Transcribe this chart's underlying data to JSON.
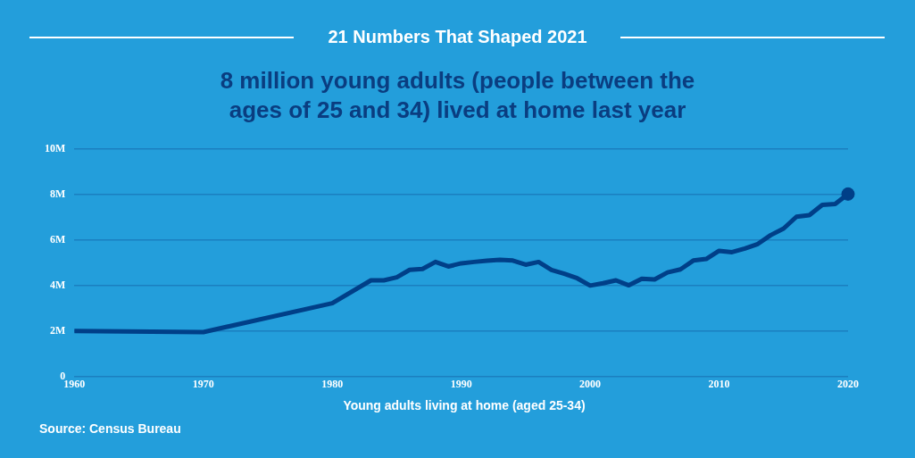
{
  "chart_data": {
    "type": "line",
    "title": "21 Numbers That Shaped 2021",
    "subtitle": "8 million young adults (people between the ages of 25 and 34) lived at home last year",
    "xlabel": "Young adults living at home (aged 25-34)",
    "annotations": [
      "Source: Census Bureau"
    ],
    "x": [
      1960,
      1970,
      1980,
      1983,
      1984,
      1985,
      1986,
      1987,
      1988,
      1989,
      1990,
      1991,
      1992,
      1993,
      1994,
      1995,
      1996,
      1997,
      1998,
      1999,
      2000,
      2001,
      2002,
      2003,
      2004,
      2005,
      2006,
      2007,
      2008,
      2009,
      2010,
      2011,
      2012,
      2013,
      2014,
      2015,
      2016,
      2017,
      2018,
      2019,
      2020
    ],
    "series": [
      {
        "type": "line",
        "color": "#003f88",
        "marker": "none",
        "values": [
          2.0,
          1.95,
          3.22,
          4.23,
          4.23,
          4.36,
          4.69,
          4.73,
          5.04,
          4.84,
          4.98,
          5.04,
          5.09,
          5.13,
          5.1,
          4.92,
          5.04,
          4.69,
          4.52,
          4.32,
          4.0,
          4.1,
          4.23,
          4.01,
          4.3,
          4.27,
          4.58,
          4.71,
          5.1,
          5.17,
          5.53,
          5.47,
          5.63,
          5.83,
          6.22,
          6.51,
          7.03,
          7.1,
          7.55,
          7.59,
          8.03
        ]
      },
      {
        "type": "scatter",
        "color": "#003f88",
        "marker": "circle",
        "x": [
          2020
        ],
        "values": [
          8.03
        ]
      }
    ],
    "xlim": [
      1960,
      2020
    ],
    "xticks": [
      1960,
      1970,
      1980,
      1990,
      2000,
      2010,
      2020
    ],
    "ylim": [
      0,
      10
    ],
    "yticks": [
      0,
      {
        "value": 2,
        "label": "2M"
      },
      {
        "value": 4,
        "label": "4M"
      },
      {
        "value": 6,
        "label": "6M"
      },
      {
        "value": 8,
        "label": "8M"
      },
      {
        "value": 10,
        "label": "10M"
      }
    ],
    "grid": "y",
    "legend": false
  }
}
